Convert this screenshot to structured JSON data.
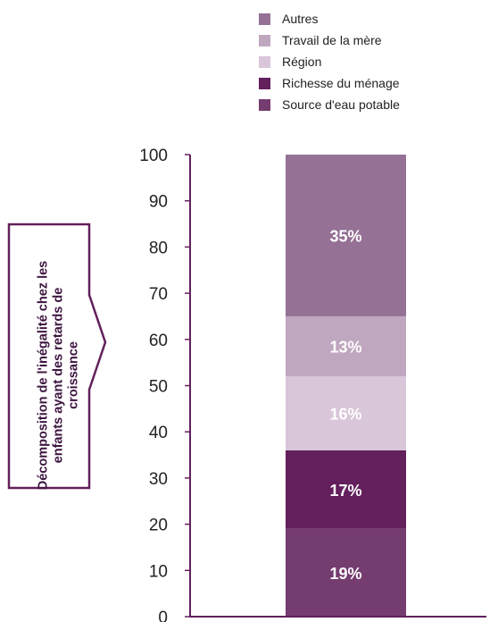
{
  "chart_data": {
    "type": "bar",
    "stacked": true,
    "ylim": [
      0,
      100
    ],
    "y_ticks": [
      "0",
      "10",
      "20",
      "30",
      "40",
      "50",
      "60",
      "70",
      "80",
      "90",
      "100"
    ],
    "grid": false,
    "legend_position": "top",
    "y_axis_note": "Décomposition de l'inégalité chez les enfants ayant des retards de croissance",
    "series": [
      {
        "name": "Source d'eau potable",
        "value": 19,
        "label": "19%",
        "color": "#743c6f",
        "label_color": "#ffffff"
      },
      {
        "name": "Richesse du ménage",
        "value": 17,
        "label": "17%",
        "color": "#63205c",
        "label_color": "#ffffff"
      },
      {
        "name": "Région",
        "value": 16,
        "label": "16%",
        "color": "#d9c6d9",
        "label_color": "#ffffff"
      },
      {
        "name": "Travail de la mère",
        "value": 13,
        "label": "13%",
        "color": "#c0a7c0",
        "label_color": "#ffffff"
      },
      {
        "name": "Autres",
        "value": 35,
        "label": "35%",
        "color": "#957195",
        "label_color": "#ffffff"
      }
    ]
  },
  "legend": [
    {
      "label": "Autres",
      "color": "#957195"
    },
    {
      "label": "Travail de la mère",
      "color": "#c0a7c0"
    },
    {
      "label": "Région",
      "color": "#d9c6d9"
    },
    {
      "label": "Richesse du ménage",
      "color": "#63205c"
    },
    {
      "label": "Source d'eau potable",
      "color": "#743c6f"
    }
  ],
  "colors": {
    "axis": "#63205c",
    "tick_text": "#222222",
    "arrow": "#63205c"
  }
}
